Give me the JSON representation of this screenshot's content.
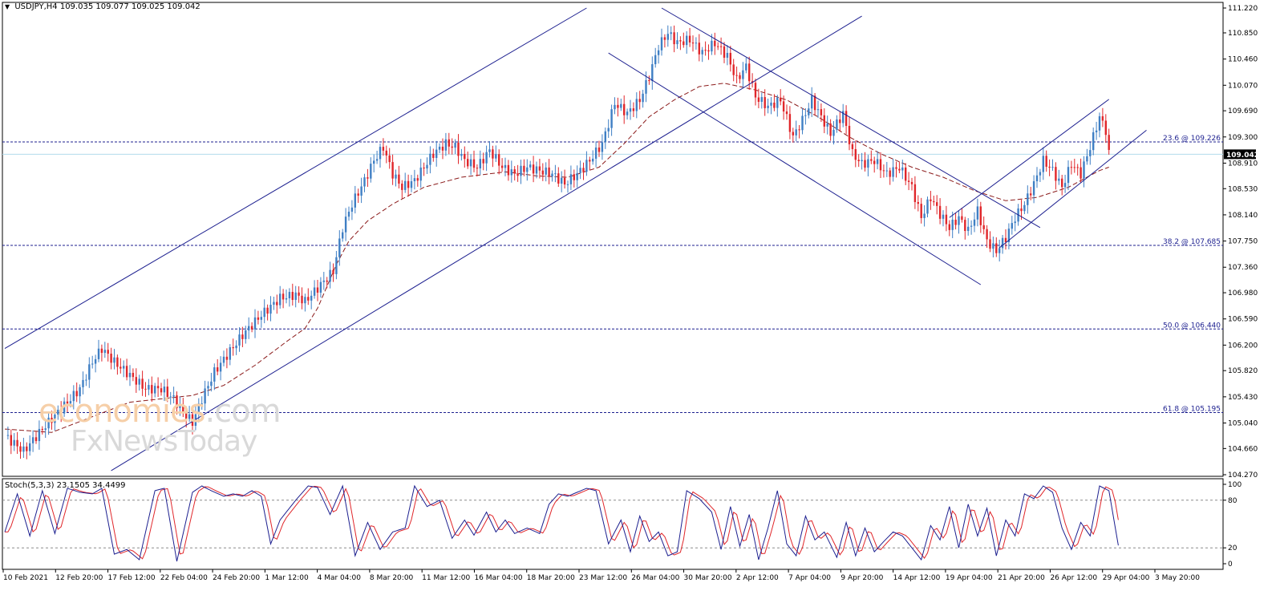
{
  "header": {
    "symbol_timeframe": "USDJPY,H4",
    "ohlc": "109.035 109.077 109.025 109.042"
  },
  "watermark": {
    "line1_main": "economies",
    "line1_suffix": ".com",
    "line2": "FxNewsToday"
  },
  "colors": {
    "background": "#ffffff",
    "bull_candle": "#3f7fc4",
    "bear_candle": "#e0262a",
    "channel_line": "#1c1f8f",
    "fib_line": "#1c1f8f",
    "moving_average": "#8b1a1a",
    "current_price_line": "#b3dceb",
    "stoch_main": "#1c1f8f",
    "stoch_signal": "#e0262a",
    "axis": "#000000"
  },
  "chart_data": {
    "type": "candlestick",
    "symbol": "USDJPY",
    "timeframe": "H4",
    "current_price": 109.042,
    "current_price_label": "109.042",
    "ylim": [
      104.27,
      111.22
    ],
    "y_ticks": [
      "111.220",
      "110.850",
      "110.460",
      "110.070",
      "109.690",
      "109.300",
      "108.910",
      "108.530",
      "108.140",
      "107.750",
      "107.360",
      "106.980",
      "106.590",
      "106.200",
      "105.820",
      "105.430",
      "105.040",
      "104.660",
      "104.270"
    ],
    "x_ticks": [
      "10 Feb 2021",
      "12 Feb 20:00",
      "17 Feb 12:00",
      "22 Feb 04:00",
      "24 Feb 20:00",
      "1 Mar 12:00",
      "4 Mar 04:00",
      "8 Mar 20:00",
      "11 Mar 12:00",
      "16 Mar 04:00",
      "18 Mar 20:00",
      "23 Mar 12:00",
      "26 Mar 04:00",
      "30 Mar 20:00",
      "2 Apr 12:00",
      "7 Apr 04:00",
      "9 Apr 20:00",
      "14 Apr 12:00",
      "19 Apr 04:00",
      "21 Apr 20:00",
      "26 Apr 12:00",
      "29 Apr 04:00",
      "3 May 20:00"
    ],
    "price_anchors": [
      [
        0,
        104.85
      ],
      [
        6,
        104.62
      ],
      [
        12,
        104.95
      ],
      [
        18,
        105.25
      ],
      [
        24,
        105.55
      ],
      [
        28,
        105.95
      ],
      [
        31,
        106.15
      ],
      [
        35,
        105.95
      ],
      [
        40,
        105.75
      ],
      [
        45,
        105.55
      ],
      [
        50,
        105.55
      ],
      [
        54,
        105.4
      ],
      [
        57,
        105.2
      ],
      [
        60,
        105.05
      ],
      [
        63,
        105.4
      ],
      [
        67,
        105.8
      ],
      [
        71,
        106.05
      ],
      [
        76,
        106.35
      ],
      [
        82,
        106.65
      ],
      [
        88,
        106.9
      ],
      [
        93,
        106.95
      ],
      [
        96,
        106.85
      ],
      [
        100,
        107.05
      ],
      [
        105,
        107.3
      ],
      [
        108,
        107.95
      ],
      [
        111,
        108.3
      ],
      [
        115,
        108.65
      ],
      [
        118,
        108.95
      ],
      [
        121,
        109.15
      ],
      [
        124,
        108.75
      ],
      [
        127,
        108.55
      ],
      [
        131,
        108.65
      ],
      [
        134,
        108.85
      ],
      [
        137,
        109.05
      ],
      [
        141,
        109.2
      ],
      [
        144,
        109.15
      ],
      [
        147,
        108.95
      ],
      [
        151,
        108.85
      ],
      [
        155,
        109.1
      ],
      [
        159,
        108.85
      ],
      [
        163,
        108.75
      ],
      [
        167,
        108.85
      ],
      [
        171,
        108.8
      ],
      [
        175,
        108.75
      ],
      [
        179,
        108.6
      ],
      [
        183,
        108.75
      ],
      [
        187,
        108.95
      ],
      [
        191,
        109.2
      ],
      [
        195,
        109.8
      ],
      [
        199,
        109.65
      ],
      [
        203,
        109.85
      ],
      [
        206,
        110.2
      ],
      [
        209,
        110.65
      ],
      [
        212,
        110.85
      ],
      [
        215,
        110.7
      ],
      [
        219,
        110.75
      ],
      [
        223,
        110.55
      ],
      [
        227,
        110.7
      ],
      [
        231,
        110.5
      ],
      [
        234,
        110.15
      ],
      [
        237,
        110.35
      ],
      [
        240,
        109.9
      ],
      [
        244,
        109.75
      ],
      [
        248,
        109.85
      ],
      [
        252,
        109.3
      ],
      [
        255,
        109.55
      ],
      [
        258,
        109.85
      ],
      [
        261,
        109.6
      ],
      [
        264,
        109.35
      ],
      [
        268,
        109.65
      ],
      [
        271,
        109.05
      ],
      [
        274,
        108.9
      ],
      [
        278,
        108.95
      ],
      [
        282,
        108.75
      ],
      [
        286,
        108.85
      ],
      [
        290,
        108.55
      ],
      [
        293,
        108.1
      ],
      [
        296,
        108.4
      ],
      [
        299,
        108.15
      ],
      [
        302,
        107.95
      ],
      [
        305,
        108.1
      ],
      [
        308,
        107.9
      ],
      [
        311,
        108.2
      ],
      [
        314,
        107.75
      ],
      [
        317,
        107.6
      ],
      [
        320,
        107.8
      ],
      [
        323,
        108.1
      ],
      [
        326,
        108.3
      ],
      [
        329,
        108.6
      ],
      [
        332,
        108.95
      ],
      [
        335,
        108.8
      ],
      [
        338,
        108.55
      ],
      [
        341,
        108.9
      ],
      [
        344,
        108.75
      ],
      [
        347,
        109.15
      ],
      [
        350,
        109.6
      ],
      [
        352,
        109.4
      ],
      [
        353,
        109.05
      ]
    ],
    "moving_average": {
      "name": "Moving Average",
      "anchors": [
        [
          0,
          104.95
        ],
        [
          15,
          104.9
        ],
        [
          40,
          105.35
        ],
        [
          60,
          105.45
        ],
        [
          70,
          105.6
        ],
        [
          80,
          105.9
        ],
        [
          90,
          106.25
        ],
        [
          96,
          106.45
        ],
        [
          100,
          106.75
        ],
        [
          106,
          107.4
        ],
        [
          110,
          107.75
        ],
        [
          116,
          108.05
        ],
        [
          124,
          108.3
        ],
        [
          134,
          108.55
        ],
        [
          146,
          108.7
        ],
        [
          160,
          108.78
        ],
        [
          170,
          108.72
        ],
        [
          180,
          108.7
        ],
        [
          190,
          108.85
        ],
        [
          198,
          109.2
        ],
        [
          206,
          109.6
        ],
        [
          214,
          109.85
        ],
        [
          222,
          110.05
        ],
        [
          230,
          110.1
        ],
        [
          240,
          110.0
        ],
        [
          250,
          109.85
        ],
        [
          260,
          109.6
        ],
        [
          270,
          109.3
        ],
        [
          280,
          109.05
        ],
        [
          290,
          108.85
        ],
        [
          300,
          108.7
        ],
        [
          310,
          108.5
        ],
        [
          320,
          108.35
        ],
        [
          330,
          108.4
        ],
        [
          340,
          108.55
        ],
        [
          350,
          108.8
        ],
        [
          353,
          108.85
        ]
      ]
    },
    "channels": [
      {
        "name": "ascending channel",
        "upper": [
          [
            0,
            106.15
          ],
          [
            186,
            111.22
          ]
        ],
        "lower": [
          [
            34,
            104.33
          ],
          [
            274,
            111.1
          ]
        ]
      },
      {
        "name": "descending channel",
        "upper": [
          [
            210,
            111.22
          ],
          [
            331,
            107.95
          ]
        ],
        "lower": [
          [
            193,
            110.55
          ],
          [
            312,
            107.1
          ]
        ]
      },
      {
        "name": "rising channel",
        "upper": [
          [
            302,
            108.1
          ],
          [
            353,
            109.86
          ]
        ],
        "lower": [
          [
            318,
            107.65
          ],
          [
            365,
            109.4
          ]
        ]
      }
    ],
    "fibonacci_levels": [
      {
        "label": "23.6 @ 109.226",
        "price": 109.226
      },
      {
        "label": "38.2 @ 107.685",
        "price": 107.685
      },
      {
        "label": "50.0 @ 106.440",
        "price": 106.44
      },
      {
        "label": "61.8 @ 105.195",
        "price": 105.195
      }
    ],
    "stochastic": {
      "label": "Stoch(5,3,3) 23.1505 34.4499",
      "main_value": 23.1505,
      "signal_value": 34.4499,
      "levels": [
        80,
        20
      ],
      "y_ticks": [
        "100",
        "80",
        "20",
        "0"
      ],
      "anchors": [
        [
          0,
          40
        ],
        [
          4,
          88
        ],
        [
          8,
          35
        ],
        [
          12,
          92
        ],
        [
          16,
          38
        ],
        [
          20,
          95
        ],
        [
          24,
          90
        ],
        [
          28,
          88
        ],
        [
          31,
          95
        ],
        [
          35,
          12
        ],
        [
          39,
          18
        ],
        [
          43,
          5
        ],
        [
          48,
          92
        ],
        [
          51,
          95
        ],
        [
          55,
          3
        ],
        [
          60,
          90
        ],
        [
          63,
          98
        ],
        [
          66,
          92
        ],
        [
          70,
          85
        ],
        [
          73,
          88
        ],
        [
          76,
          85
        ],
        [
          79,
          92
        ],
        [
          82,
          85
        ],
        [
          85,
          25
        ],
        [
          88,
          55
        ],
        [
          93,
          80
        ],
        [
          97,
          98
        ],
        [
          100,
          96
        ],
        [
          104,
          62
        ],
        [
          108,
          98
        ],
        [
          112,
          10
        ],
        [
          116,
          52
        ],
        [
          120,
          18
        ],
        [
          124,
          40
        ],
        [
          128,
          45
        ],
        [
          131,
          98
        ],
        [
          135,
          72
        ],
        [
          139,
          80
        ],
        [
          143,
          32
        ],
        [
          147,
          55
        ],
        [
          150,
          36
        ],
        [
          154,
          65
        ],
        [
          157,
          40
        ],
        [
          160,
          55
        ],
        [
          163,
          38
        ],
        [
          167,
          45
        ],
        [
          171,
          38
        ],
        [
          174,
          75
        ],
        [
          177,
          88
        ],
        [
          180,
          85
        ],
        [
          183,
          90
        ],
        [
          186,
          95
        ],
        [
          189,
          92
        ],
        [
          193,
          25
        ],
        [
          197,
          55
        ],
        [
          200,
          15
        ],
        [
          203,
          60
        ],
        [
          206,
          28
        ],
        [
          209,
          40
        ],
        [
          212,
          10
        ],
        [
          215,
          15
        ],
        [
          218,
          92
        ],
        [
          222,
          82
        ],
        [
          226,
          65
        ],
        [
          229,
          18
        ],
        [
          232,
          72
        ],
        [
          235,
          22
        ],
        [
          238,
          62
        ],
        [
          241,
          5
        ],
        [
          244,
          45
        ],
        [
          247,
          92
        ],
        [
          250,
          25
        ],
        [
          253,
          10
        ],
        [
          256,
          60
        ],
        [
          259,
          30
        ],
        [
          262,
          40
        ],
        [
          266,
          8
        ],
        [
          269,
          52
        ],
        [
          272,
          10
        ],
        [
          275,
          45
        ],
        [
          278,
          15
        ],
        [
          281,
          28
        ],
        [
          284,
          40
        ],
        [
          287,
          35
        ],
        [
          290,
          20
        ],
        [
          293,
          5
        ],
        [
          296,
          48
        ],
        [
          299,
          30
        ],
        [
          302,
          72
        ],
        [
          305,
          20
        ],
        [
          308,
          75
        ],
        [
          311,
          35
        ],
        [
          314,
          70
        ],
        [
          317,
          10
        ],
        [
          320,
          55
        ],
        [
          323,
          35
        ],
        [
          326,
          88
        ],
        [
          329,
          82
        ],
        [
          332,
          98
        ],
        [
          335,
          90
        ],
        [
          338,
          45
        ],
        [
          341,
          18
        ],
        [
          344,
          52
        ],
        [
          347,
          35
        ],
        [
          350,
          98
        ],
        [
          353,
          92
        ],
        [
          356,
          23
        ]
      ]
    }
  }
}
